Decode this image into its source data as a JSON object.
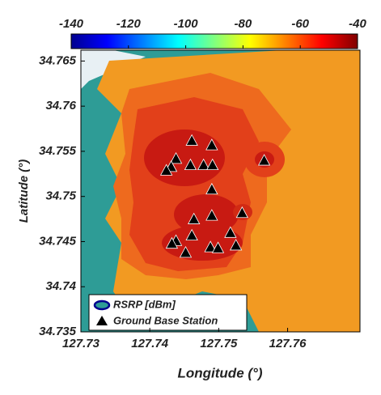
{
  "chart_data": {
    "type": "contour",
    "xlabel": "Longitude (°)",
    "ylabel": "Latitude (°)",
    "xlim": [
      127.73,
      127.7705
    ],
    "ylim": [
      34.735,
      34.7662
    ],
    "xticks": [
      127.73,
      127.74,
      127.75,
      127.76
    ],
    "yticks": [
      34.735,
      34.74,
      34.745,
      34.75,
      34.755,
      34.76,
      34.765
    ],
    "clim": [
      -140,
      -40
    ],
    "cticks": [
      -140,
      -120,
      -100,
      -80,
      -60,
      -40
    ],
    "colormap": "jet",
    "field_name": "RSRP [dBm]",
    "series": [
      {
        "name": "Ground Base Station",
        "color": "#000000",
        "x": [
          127.7461,
          127.749,
          127.7438,
          127.7431,
          127.7424,
          127.7459,
          127.7478,
          127.7491,
          127.749,
          127.7566,
          127.7464,
          127.749,
          127.7534,
          127.7461,
          127.7438,
          127.7432,
          127.7452,
          127.7488,
          127.7499,
          127.7517,
          127.7525
        ],
        "values": [
          34.7562,
          34.7557,
          34.7542,
          34.7533,
          34.7529,
          34.7535,
          34.7535,
          34.7535,
          34.7508,
          34.754,
          34.7475,
          34.7479,
          34.7482,
          34.7457,
          34.7451,
          34.7448,
          34.7438,
          34.7444,
          34.7443,
          34.746,
          34.7446
        ]
      }
    ]
  }
}
